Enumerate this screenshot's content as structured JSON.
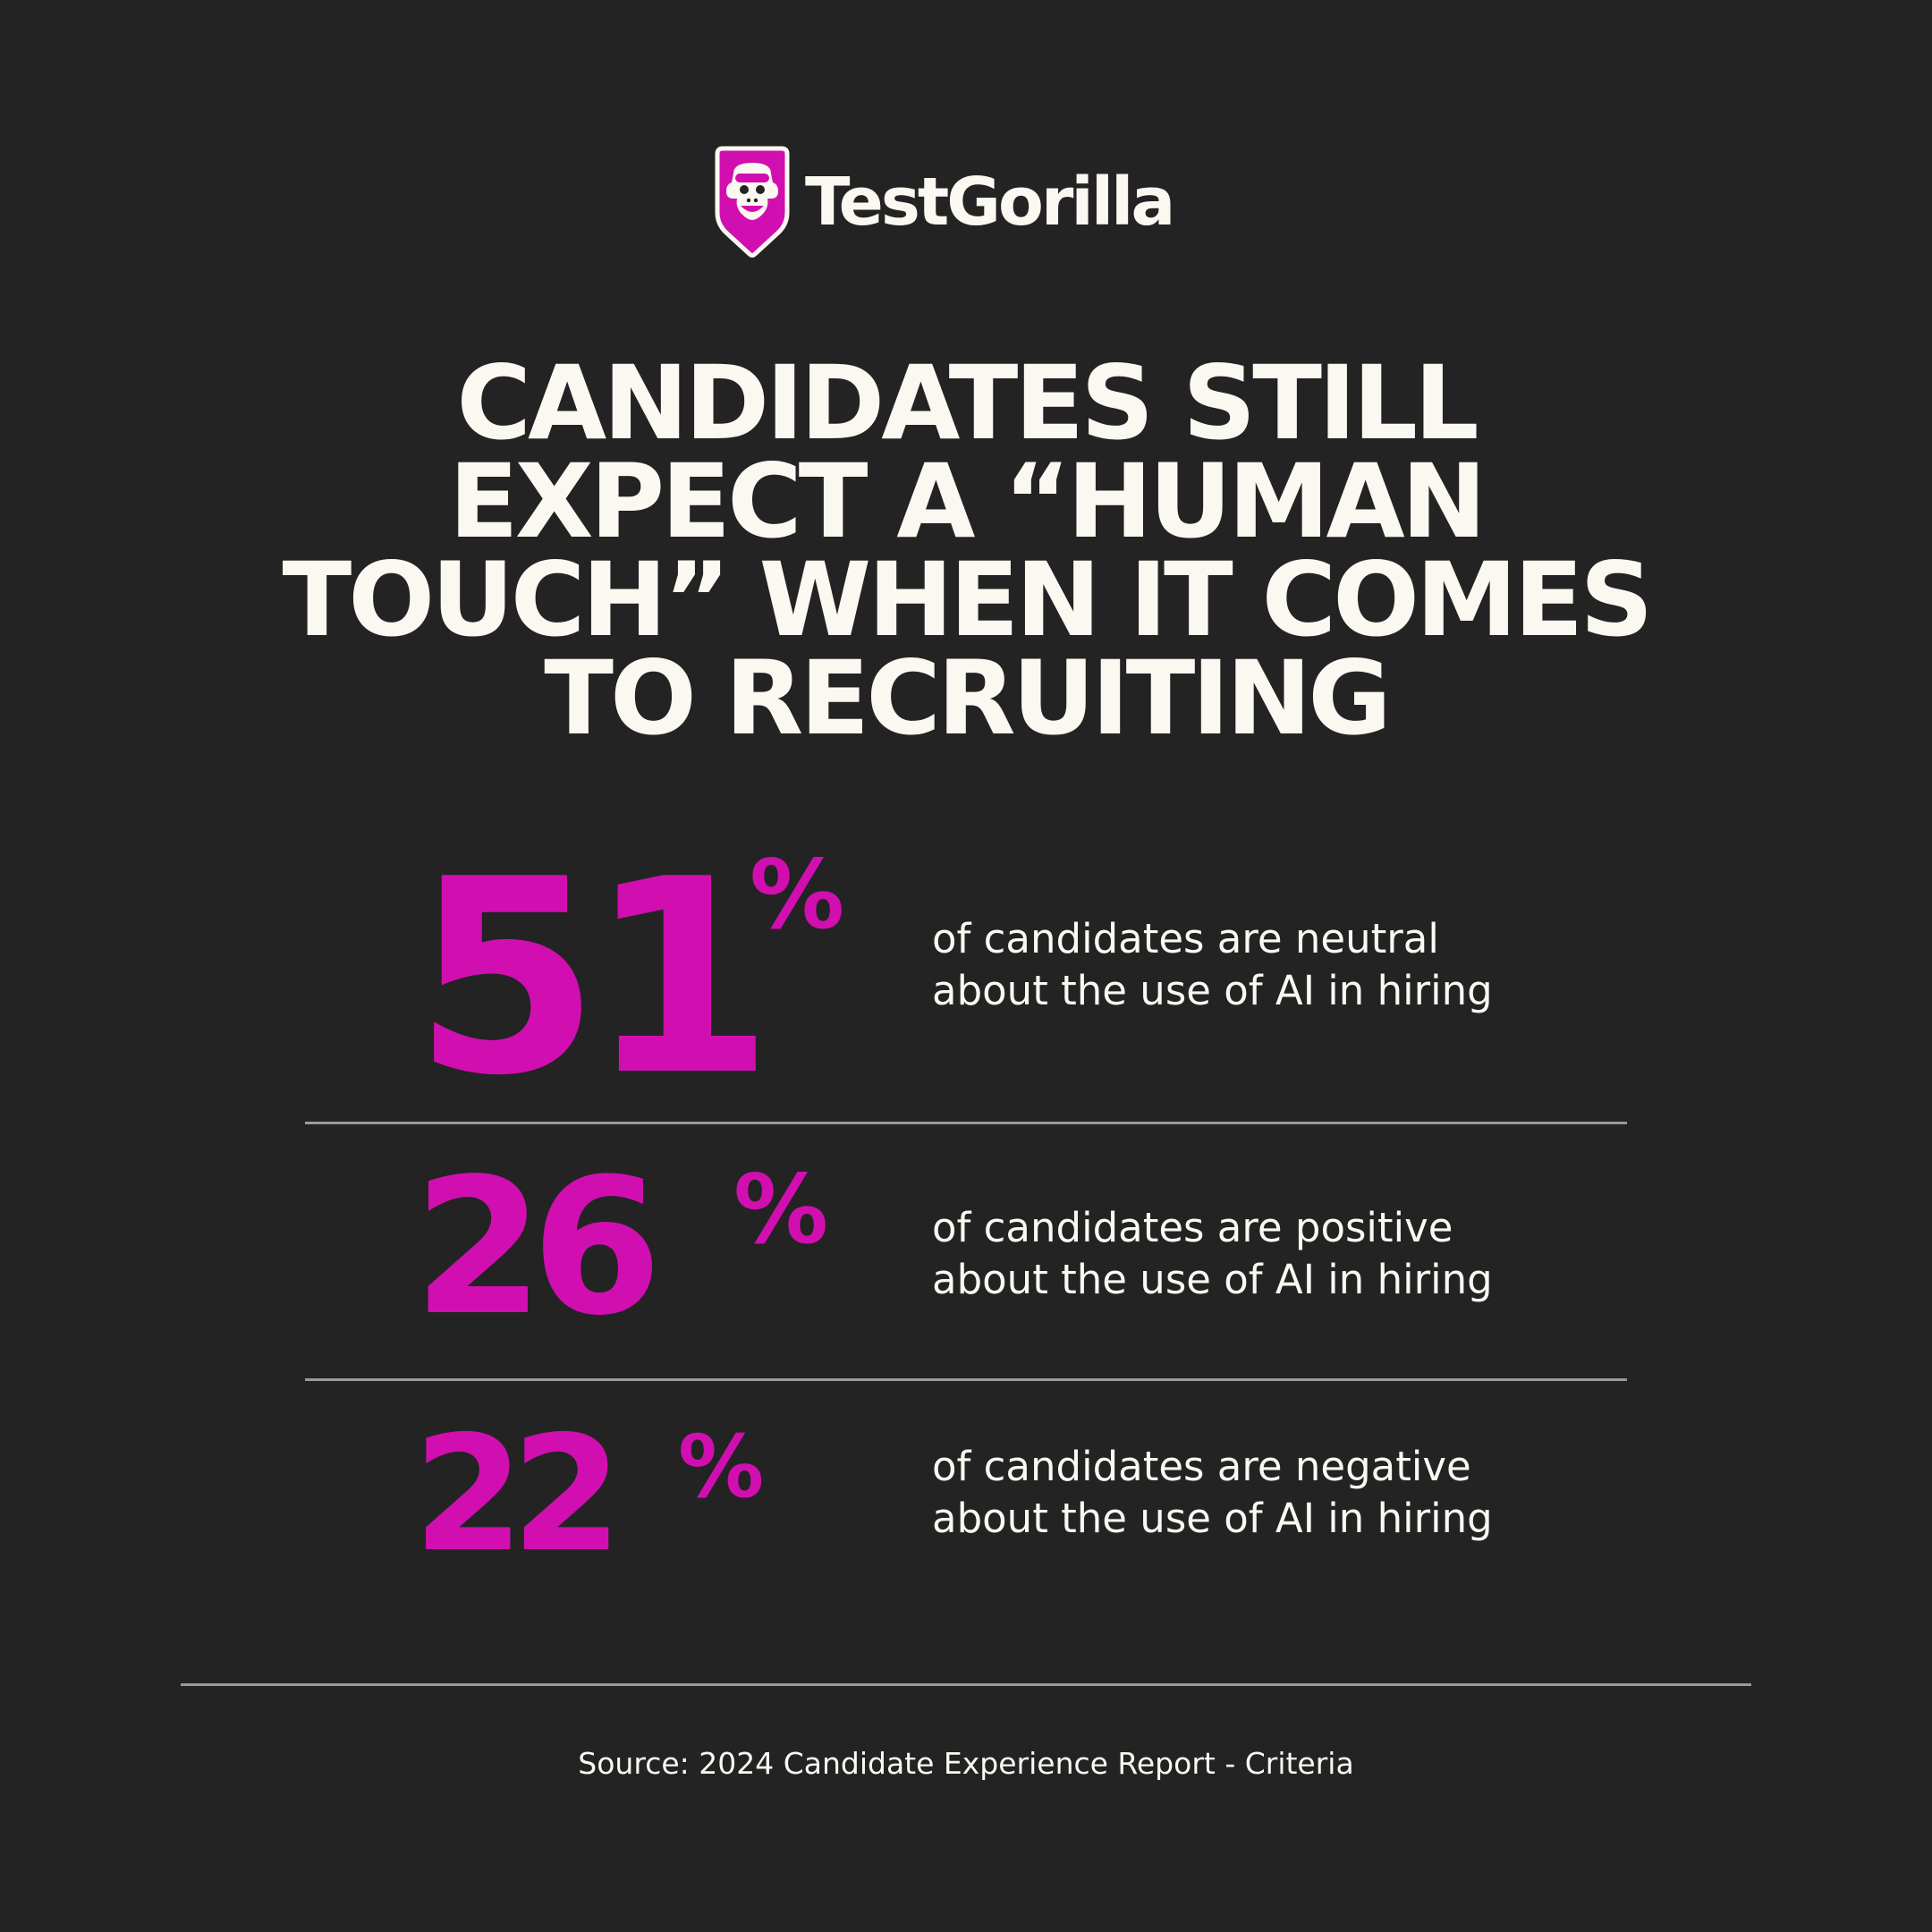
{
  "brand": {
    "name": "TestGorilla",
    "logo_icon": "gorilla-shield-icon",
    "accent_color": "#d10fb0",
    "background_color": "#232323",
    "text_color": "#fbf8f1"
  },
  "headline": {
    "lines": [
      "CANDIDATES STILL",
      "EXPECT A “HUMAN",
      "TOUCH” WHEN IT COMES",
      "TO RECRUITING"
    ]
  },
  "stats": [
    {
      "value": "51",
      "unit": "%",
      "line1": "of candidates are neutral",
      "line2": "about the use of AI in hiring"
    },
    {
      "value": "26",
      "unit": "%",
      "line1": "of candidates are positive",
      "line2": "about the use of AI in hiring"
    },
    {
      "value": "22",
      "unit": "%",
      "line1": "of candidates are negative",
      "line2": "about the use of AI in hiring"
    }
  ],
  "source": "Source: 2024 Candidate Experience Report - Criteria"
}
